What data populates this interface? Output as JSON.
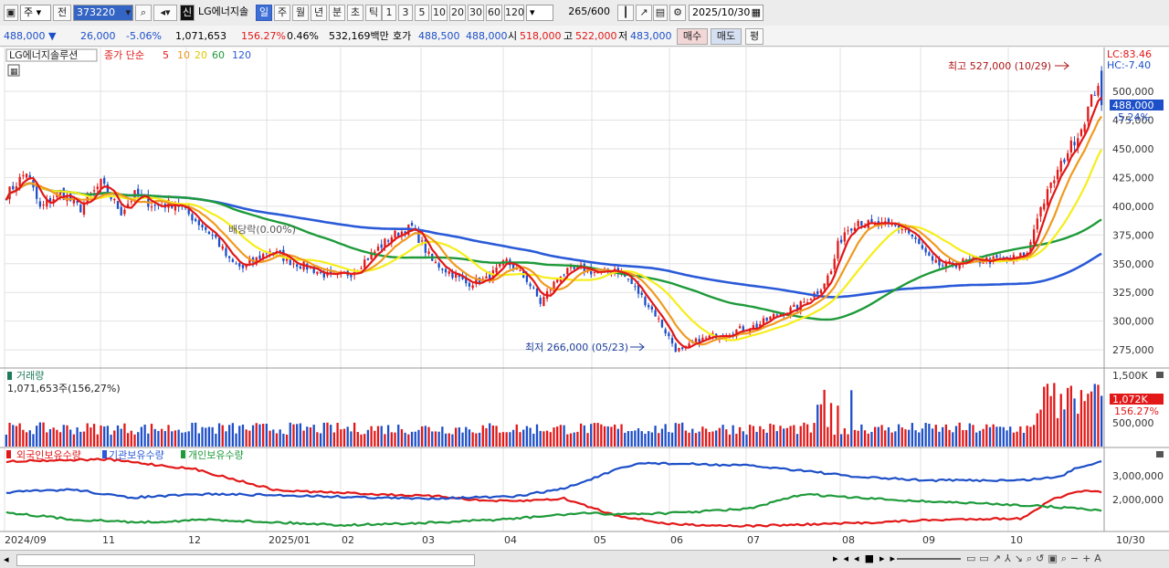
{
  "toolbar": {
    "period_select": "주",
    "prev_label": "전",
    "code": "373220",
    "credit_label": "신",
    "stock_name": "LG에너지솔",
    "period_tabs": [
      "일",
      "주",
      "월",
      "년",
      "분",
      "초",
      "틱"
    ],
    "numbers": [
      "1",
      "3",
      "5",
      "10",
      "20",
      "30",
      "60",
      "120"
    ],
    "count": "265",
    "total": "/600",
    "date": "2025/10/30"
  },
  "info": {
    "price": "488,000",
    "change": "26,000",
    "change_pct": "-5.06%",
    "volume": "1,071,653",
    "volume_ratio": "156.27%",
    "turnover": "0.46%",
    "amount": "532,169백만",
    "quote_label": "호가",
    "ask": "488,500",
    "bid": "488,000",
    "open_label": "시",
    "open": "518,000",
    "high_label": "고",
    "high": "522,000",
    "low_label": "저",
    "low": "483,000",
    "buy_label": "매수",
    "sell_label": "매도",
    "eval_label": "평"
  },
  "legend": {
    "name": "LG에너지솔루션",
    "ma_prefix": "종가 단순",
    "ma_periods": [
      "5",
      "10",
      "20",
      "60",
      "120"
    ],
    "volume_title": "거래량",
    "volume_value": "1,071,653주(156,27%)",
    "holdings": [
      "외국인보유수량",
      "기관보유수량",
      "개인보유수량"
    ]
  },
  "annotations": {
    "lc": "LC:83.46",
    "hc": "HC:-7.40",
    "high_note": "최고 527,000 (10/29)",
    "low_note": "최저 266,000 (05/23)",
    "current_tag": "488,000",
    "current_pct": "-5.24%",
    "div_note": "배당락(0.00%)",
    "vol_tag": "1,072K",
    "vol_pct": "156.27%"
  },
  "colors": {
    "up": "#e21818",
    "down": "#1d4fc8",
    "ma5": "#e21818",
    "ma10": "#f09a20",
    "ma20": "#f6ee1a",
    "ma60": "#1e9a3a",
    "ma120": "#2a5ad8"
  },
  "chart_data": [
    {
      "type": "candlestick",
      "title": "LG에너지솔루션",
      "ylim": [
        260000,
        535000
      ],
      "y_ticks": [
        "275,000",
        "300,000",
        "325,000",
        "350,000",
        "375,000",
        "400,000",
        "425,000",
        "450,000",
        "475,000",
        "500,000"
      ],
      "x_ticks": [
        "2024/09",
        "11",
        "12",
        "2025/01",
        "02",
        "03",
        "04",
        "05",
        "06",
        "07",
        "08",
        "09",
        "10",
        "10/30"
      ],
      "anchors": [
        [
          0,
          410000
        ],
        [
          6,
          430000
        ],
        [
          10,
          398000
        ],
        [
          16,
          412000
        ],
        [
          22,
          398000
        ],
        [
          28,
          420000
        ],
        [
          34,
          395000
        ],
        [
          38,
          410000
        ],
        [
          44,
          400000
        ],
        [
          50,
          403000
        ],
        [
          56,
          388000
        ],
        [
          62,
          372000
        ],
        [
          66,
          352000
        ],
        [
          70,
          346000
        ],
        [
          78,
          362000
        ],
        [
          84,
          352000
        ],
        [
          90,
          346000
        ],
        [
          96,
          338000
        ],
        [
          102,
          342000
        ],
        [
          108,
          358000
        ],
        [
          114,
          374000
        ],
        [
          120,
          382000
        ],
        [
          126,
          352000
        ],
        [
          132,
          341000
        ],
        [
          136,
          333000
        ],
        [
          142,
          336000
        ],
        [
          148,
          352000
        ],
        [
          154,
          336000
        ],
        [
          158,
          316000
        ],
        [
          164,
          341000
        ],
        [
          170,
          346000
        ],
        [
          176,
          341000
        ],
        [
          180,
          346000
        ],
        [
          184,
          336000
        ],
        [
          188,
          321000
        ],
        [
          192,
          306000
        ],
        [
          196,
          286000
        ],
        [
          198,
          276000
        ],
        [
          200,
          274000
        ],
        [
          204,
          282000
        ],
        [
          210,
          288000
        ],
        [
          216,
          292000
        ],
        [
          222,
          296000
        ],
        [
          228,
          306000
        ],
        [
          234,
          312000
        ],
        [
          240,
          326000
        ],
        [
          244,
          343000
        ],
        [
          246,
          366000
        ],
        [
          248,
          378000
        ],
        [
          252,
          388000
        ],
        [
          256,
          383000
        ],
        [
          262,
          383000
        ],
        [
          266,
          380000
        ],
        [
          270,
          366000
        ],
        [
          274,
          350000
        ],
        [
          278,
          348000
        ],
        [
          284,
          352000
        ],
        [
          290,
          353000
        ],
        [
          296,
          353000
        ],
        [
          302,
          358000
        ],
        [
          305,
          392000
        ],
        [
          310,
          424000
        ],
        [
          314,
          448000
        ],
        [
          318,
          468000
        ],
        [
          321,
          493000
        ],
        [
          323,
          508000
        ],
        [
          324,
          488000
        ]
      ],
      "volume": {
        "ylim": [
          0,
          1600000
        ],
        "y_ticks": [
          "500,000",
          "1,500K"
        ],
        "last_value": 1071653
      },
      "holdings": {
        "y_ticks": [
          "2,000,000",
          "3,000,000"
        ]
      }
    }
  ]
}
